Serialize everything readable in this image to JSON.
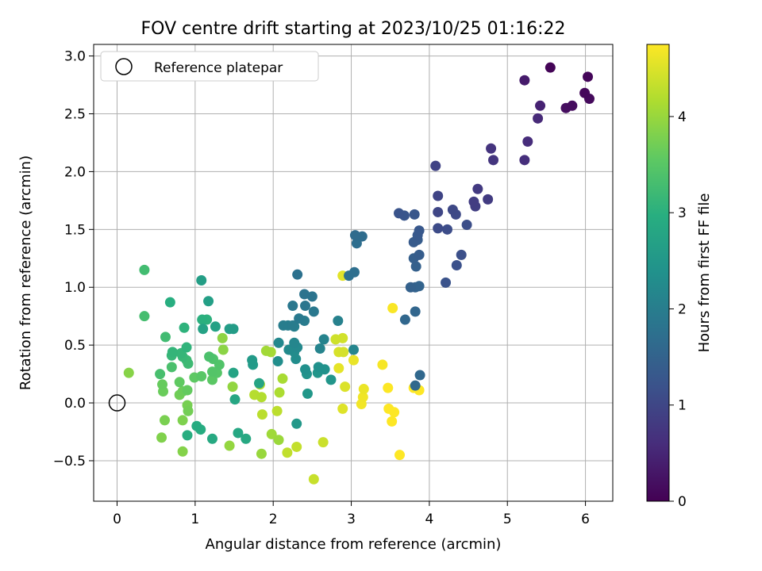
{
  "chart_data": {
    "type": "scatter",
    "title": "FOV centre drift starting at 2023/10/25 01:16:22",
    "xlabel": "Angular distance from reference (arcmin)",
    "ylabel": "Rotation from reference (arcmin)",
    "xlim": [
      -0.3,
      6.35
    ],
    "ylim": [
      -0.85,
      3.1
    ],
    "xticks": [
      0,
      1,
      2,
      3,
      4,
      5,
      6
    ],
    "xtick_labels": [
      "0",
      "1",
      "2",
      "3",
      "4",
      "5",
      "6"
    ],
    "yticks": [
      -0.5,
      0.0,
      0.5,
      1.0,
      1.5,
      2.0,
      2.5,
      3.0
    ],
    "ytick_labels": [
      "−0.5",
      "0.0",
      "0.5",
      "1.0",
      "1.5",
      "2.0",
      "2.5",
      "3.0"
    ],
    "grid": true,
    "colormap": "viridis",
    "colorbar": {
      "label": "Hours from first FF file",
      "range": [
        0,
        4.75
      ],
      "ticks": [
        0,
        1,
        2,
        3,
        4
      ],
      "tick_labels": [
        "0",
        "1",
        "2",
        "3",
        "4"
      ]
    },
    "legend": {
      "placement": "top-left",
      "entries": [
        "Reference platepar"
      ]
    },
    "reference_point": {
      "x": 0.0,
      "y": 0.0
    },
    "points": [
      {
        "x": 5.55,
        "y": 2.9,
        "h": 0.05
      },
      {
        "x": 6.03,
        "y": 2.82,
        "h": 0.07
      },
      {
        "x": 5.99,
        "y": 2.68,
        "h": 0.1
      },
      {
        "x": 6.05,
        "y": 2.63,
        "h": 0.12
      },
      {
        "x": 5.83,
        "y": 2.57,
        "h": 0.15
      },
      {
        "x": 5.75,
        "y": 2.55,
        "h": 0.17
      },
      {
        "x": 5.22,
        "y": 2.79,
        "h": 0.35
      },
      {
        "x": 5.42,
        "y": 2.57,
        "h": 0.45
      },
      {
        "x": 5.39,
        "y": 2.46,
        "h": 0.55
      },
      {
        "x": 5.26,
        "y": 2.26,
        "h": 0.6
      },
      {
        "x": 5.22,
        "y": 2.1,
        "h": 0.62
      },
      {
        "x": 4.79,
        "y": 2.2,
        "h": 0.7
      },
      {
        "x": 4.82,
        "y": 2.1,
        "h": 0.72
      },
      {
        "x": 4.62,
        "y": 1.85,
        "h": 0.8
      },
      {
        "x": 4.75,
        "y": 1.76,
        "h": 0.82
      },
      {
        "x": 4.57,
        "y": 1.74,
        "h": 0.85
      },
      {
        "x": 4.59,
        "y": 1.7,
        "h": 0.87
      },
      {
        "x": 4.08,
        "y": 2.05,
        "h": 0.95
      },
      {
        "x": 4.11,
        "y": 1.79,
        "h": 0.97
      },
      {
        "x": 4.11,
        "y": 1.65,
        "h": 1.0
      },
      {
        "x": 4.3,
        "y": 1.67,
        "h": 1.02
      },
      {
        "x": 4.34,
        "y": 1.63,
        "h": 1.05
      },
      {
        "x": 4.11,
        "y": 1.51,
        "h": 1.07
      },
      {
        "x": 4.23,
        "y": 1.5,
        "h": 1.1
      },
      {
        "x": 4.48,
        "y": 1.54,
        "h": 1.12
      },
      {
        "x": 4.41,
        "y": 1.28,
        "h": 1.15
      },
      {
        "x": 4.35,
        "y": 1.19,
        "h": 1.17
      },
      {
        "x": 4.21,
        "y": 1.04,
        "h": 1.2
      },
      {
        "x": 3.61,
        "y": 1.64,
        "h": 1.22
      },
      {
        "x": 3.68,
        "y": 1.62,
        "h": 1.25
      },
      {
        "x": 3.81,
        "y": 1.63,
        "h": 1.27
      },
      {
        "x": 3.87,
        "y": 1.49,
        "h": 1.3
      },
      {
        "x": 3.85,
        "y": 1.45,
        "h": 1.32
      },
      {
        "x": 3.8,
        "y": 1.39,
        "h": 1.35
      },
      {
        "x": 3.85,
        "y": 1.41,
        "h": 1.37
      },
      {
        "x": 3.87,
        "y": 1.28,
        "h": 1.4
      },
      {
        "x": 3.8,
        "y": 1.25,
        "h": 1.42
      },
      {
        "x": 3.83,
        "y": 1.18,
        "h": 1.45
      },
      {
        "x": 3.76,
        "y": 1.0,
        "h": 1.47
      },
      {
        "x": 3.82,
        "y": 1.0,
        "h": 1.5
      },
      {
        "x": 3.87,
        "y": 1.01,
        "h": 1.52
      },
      {
        "x": 3.82,
        "y": 0.79,
        "h": 1.55
      },
      {
        "x": 3.69,
        "y": 0.72,
        "h": 1.57
      },
      {
        "x": 3.88,
        "y": 0.24,
        "h": 1.6
      },
      {
        "x": 3.82,
        "y": 0.15,
        "h": 1.62
      },
      {
        "x": 3.05,
        "y": 1.45,
        "h": 1.65
      },
      {
        "x": 3.14,
        "y": 1.44,
        "h": 1.67
      },
      {
        "x": 3.07,
        "y": 1.38,
        "h": 1.7
      },
      {
        "x": 3.04,
        "y": 1.13,
        "h": 1.72
      },
      {
        "x": 2.97,
        "y": 1.1,
        "h": 1.75
      },
      {
        "x": 2.31,
        "y": 1.11,
        "h": 1.77
      },
      {
        "x": 2.4,
        "y": 0.94,
        "h": 1.8
      },
      {
        "x": 2.5,
        "y": 0.92,
        "h": 1.82
      },
      {
        "x": 2.41,
        "y": 0.84,
        "h": 1.85
      },
      {
        "x": 2.25,
        "y": 0.84,
        "h": 1.87
      },
      {
        "x": 2.52,
        "y": 0.79,
        "h": 1.9
      },
      {
        "x": 2.33,
        "y": 0.73,
        "h": 1.92
      },
      {
        "x": 2.4,
        "y": 0.71,
        "h": 1.95
      },
      {
        "x": 2.25,
        "y": 0.67,
        "h": 1.97
      },
      {
        "x": 2.13,
        "y": 0.67,
        "h": 2.0
      },
      {
        "x": 2.19,
        "y": 0.67,
        "h": 2.02
      },
      {
        "x": 2.27,
        "y": 0.66,
        "h": 2.05
      },
      {
        "x": 2.83,
        "y": 0.71,
        "h": 2.07
      },
      {
        "x": 2.65,
        "y": 0.55,
        "h": 2.1
      },
      {
        "x": 2.6,
        "y": 0.47,
        "h": 2.12
      },
      {
        "x": 3.03,
        "y": 0.46,
        "h": 2.15
      },
      {
        "x": 2.27,
        "y": 0.52,
        "h": 2.17
      },
      {
        "x": 2.07,
        "y": 0.52,
        "h": 2.2
      },
      {
        "x": 2.31,
        "y": 0.48,
        "h": 2.22
      },
      {
        "x": 2.2,
        "y": 0.46,
        "h": 2.25
      },
      {
        "x": 2.27,
        "y": 0.44,
        "h": 2.27
      },
      {
        "x": 2.29,
        "y": 0.38,
        "h": 2.3
      },
      {
        "x": 2.06,
        "y": 0.36,
        "h": 2.32
      },
      {
        "x": 2.41,
        "y": 0.29,
        "h": 2.35
      },
      {
        "x": 2.58,
        "y": 0.31,
        "h": 2.37
      },
      {
        "x": 2.66,
        "y": 0.29,
        "h": 2.4
      },
      {
        "x": 2.43,
        "y": 0.25,
        "h": 2.42
      },
      {
        "x": 2.57,
        "y": 0.26,
        "h": 2.45
      },
      {
        "x": 2.74,
        "y": 0.2,
        "h": 2.47
      },
      {
        "x": 2.44,
        "y": 0.08,
        "h": 2.5
      },
      {
        "x": 2.3,
        "y": -0.18,
        "h": 2.52
      },
      {
        "x": 1.73,
        "y": 0.37,
        "h": 2.55
      },
      {
        "x": 1.74,
        "y": 0.33,
        "h": 2.57
      },
      {
        "x": 1.49,
        "y": 0.64,
        "h": 2.6
      },
      {
        "x": 1.44,
        "y": 0.64,
        "h": 2.62
      },
      {
        "x": 1.08,
        "y": 1.06,
        "h": 2.65
      },
      {
        "x": 1.17,
        "y": 0.88,
        "h": 2.67
      },
      {
        "x": 1.26,
        "y": 0.66,
        "h": 2.7
      },
      {
        "x": 1.1,
        "y": 0.64,
        "h": 2.72
      },
      {
        "x": 1.49,
        "y": 0.26,
        "h": 2.75
      },
      {
        "x": 1.82,
        "y": 0.17,
        "h": 2.77
      },
      {
        "x": 1.51,
        "y": 0.03,
        "h": 2.8
      },
      {
        "x": 1.55,
        "y": -0.26,
        "h": 2.82
      },
      {
        "x": 1.65,
        "y": -0.31,
        "h": 2.85
      },
      {
        "x": 1.22,
        "y": -0.31,
        "h": 2.87
      },
      {
        "x": 1.02,
        "y": -0.2,
        "h": 2.9
      },
      {
        "x": 1.07,
        "y": -0.23,
        "h": 2.92
      },
      {
        "x": 0.9,
        "y": -0.28,
        "h": 2.95
      },
      {
        "x": 0.68,
        "y": 0.87,
        "h": 2.97
      },
      {
        "x": 1.09,
        "y": 0.72,
        "h": 3.0
      },
      {
        "x": 1.15,
        "y": 0.72,
        "h": 3.02
      },
      {
        "x": 0.86,
        "y": 0.65,
        "h": 3.05
      },
      {
        "x": 0.89,
        "y": 0.48,
        "h": 3.07
      },
      {
        "x": 0.71,
        "y": 0.44,
        "h": 3.1
      },
      {
        "x": 0.82,
        "y": 0.43,
        "h": 3.12
      },
      {
        "x": 0.7,
        "y": 0.41,
        "h": 3.15
      },
      {
        "x": 0.84,
        "y": 0.4,
        "h": 3.17
      },
      {
        "x": 0.89,
        "y": 0.37,
        "h": 3.2
      },
      {
        "x": 0.91,
        "y": 0.34,
        "h": 3.22
      },
      {
        "x": 0.62,
        "y": 0.57,
        "h": 3.25
      },
      {
        "x": 0.35,
        "y": 1.15,
        "h": 3.27
      },
      {
        "x": 0.35,
        "y": 0.75,
        "h": 3.3
      },
      {
        "x": 0.55,
        "y": 0.25,
        "h": 3.32
      },
      {
        "x": 0.7,
        "y": 0.31,
        "h": 3.35
      },
      {
        "x": 1.18,
        "y": 0.4,
        "h": 3.37
      },
      {
        "x": 1.23,
        "y": 0.38,
        "h": 3.4
      },
      {
        "x": 1.31,
        "y": 0.33,
        "h": 3.42
      },
      {
        "x": 1.22,
        "y": 0.27,
        "h": 3.45
      },
      {
        "x": 1.28,
        "y": 0.26,
        "h": 3.47
      },
      {
        "x": 1.08,
        "y": 0.23,
        "h": 3.5
      },
      {
        "x": 1.22,
        "y": 0.2,
        "h": 3.52
      },
      {
        "x": 0.99,
        "y": 0.22,
        "h": 3.55
      },
      {
        "x": 0.8,
        "y": 0.18,
        "h": 3.57
      },
      {
        "x": 0.9,
        "y": 0.11,
        "h": 3.6
      },
      {
        "x": 0.58,
        "y": 0.16,
        "h": 3.62
      },
      {
        "x": 0.59,
        "y": 0.1,
        "h": 3.65
      },
      {
        "x": 0.84,
        "y": 0.1,
        "h": 3.67
      },
      {
        "x": 0.8,
        "y": 0.07,
        "h": 3.7
      },
      {
        "x": 0.91,
        "y": -0.07,
        "h": 3.72
      },
      {
        "x": 0.9,
        "y": -0.02,
        "h": 3.75
      },
      {
        "x": 0.61,
        "y": -0.15,
        "h": 3.77
      },
      {
        "x": 0.84,
        "y": -0.15,
        "h": 3.8
      },
      {
        "x": 0.57,
        "y": -0.3,
        "h": 3.82
      },
      {
        "x": 0.84,
        "y": -0.42,
        "h": 3.85
      },
      {
        "x": 0.15,
        "y": 0.26,
        "h": 3.87
      },
      {
        "x": 1.36,
        "y": 0.46,
        "h": 3.9
      },
      {
        "x": 1.35,
        "y": 0.56,
        "h": 3.92
      },
      {
        "x": 1.48,
        "y": 0.14,
        "h": 3.95
      },
      {
        "x": 1.44,
        "y": -0.37,
        "h": 3.97
      },
      {
        "x": 1.85,
        "y": -0.44,
        "h": 4.0
      },
      {
        "x": 2.07,
        "y": -0.32,
        "h": 4.02
      },
      {
        "x": 1.98,
        "y": -0.27,
        "h": 4.05
      },
      {
        "x": 1.91,
        "y": 0.45,
        "h": 4.07
      },
      {
        "x": 1.97,
        "y": 0.44,
        "h": 4.1
      },
      {
        "x": 2.12,
        "y": 0.21,
        "h": 4.12
      },
      {
        "x": 2.08,
        "y": 0.09,
        "h": 4.15
      },
      {
        "x": 1.83,
        "y": 0.16,
        "h": 4.17
      },
      {
        "x": 1.85,
        "y": 0.05,
        "h": 4.2
      },
      {
        "x": 1.76,
        "y": 0.07,
        "h": 4.22
      },
      {
        "x": 1.86,
        "y": -0.1,
        "h": 4.25
      },
      {
        "x": 2.05,
        "y": -0.07,
        "h": 4.27
      },
      {
        "x": 2.18,
        "y": -0.43,
        "h": 4.3
      },
      {
        "x": 2.3,
        "y": -0.38,
        "h": 4.32
      },
      {
        "x": 2.52,
        "y": -0.66,
        "h": 4.35
      },
      {
        "x": 2.64,
        "y": -0.34,
        "h": 4.37
      },
      {
        "x": 2.8,
        "y": 0.55,
        "h": 4.4
      },
      {
        "x": 2.89,
        "y": 0.56,
        "h": 4.42
      },
      {
        "x": 2.9,
        "y": 0.44,
        "h": 4.45
      },
      {
        "x": 2.84,
        "y": 0.44,
        "h": 4.47
      },
      {
        "x": 2.92,
        "y": 0.14,
        "h": 4.5
      },
      {
        "x": 2.89,
        "y": -0.05,
        "h": 4.52
      },
      {
        "x": 2.89,
        "y": 1.1,
        "h": 4.55
      },
      {
        "x": 2.84,
        "y": 0.3,
        "h": 4.57
      },
      {
        "x": 3.03,
        "y": 0.37,
        "h": 4.6
      },
      {
        "x": 3.16,
        "y": 0.12,
        "h": 4.62
      },
      {
        "x": 3.15,
        "y": 0.05,
        "h": 4.65
      },
      {
        "x": 3.13,
        "y": -0.01,
        "h": 4.67
      },
      {
        "x": 3.4,
        "y": 0.33,
        "h": 4.7
      },
      {
        "x": 3.53,
        "y": 0.82,
        "h": 4.72
      },
      {
        "x": 3.47,
        "y": 0.13,
        "h": 4.74
      },
      {
        "x": 3.52,
        "y": -0.16,
        "h": 4.75
      },
      {
        "x": 3.48,
        "y": -0.05,
        "h": 4.75
      },
      {
        "x": 3.55,
        "y": -0.08,
        "h": 4.75
      },
      {
        "x": 3.8,
        "y": 0.13,
        "h": 4.75
      },
      {
        "x": 3.87,
        "y": 0.11,
        "h": 4.75
      },
      {
        "x": 3.62,
        "y": -0.45,
        "h": 4.75
      }
    ]
  }
}
